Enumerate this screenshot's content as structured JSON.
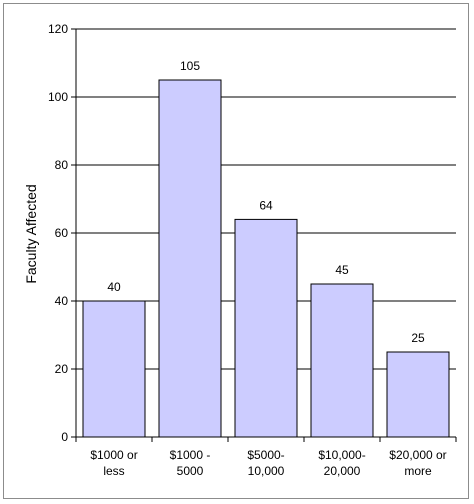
{
  "chart_data": {
    "type": "bar",
    "ylabel": "Faculty Affected",
    "xlabel": "",
    "ylim": [
      0,
      120
    ],
    "ytick_step": 20,
    "yticks": [
      "0",
      "20",
      "40",
      "60",
      "80",
      "100",
      "120"
    ],
    "grid": true,
    "categories": [
      [
        "$1000 or",
        "less"
      ],
      [
        "$1000 -",
        "5000"
      ],
      [
        "$5000-",
        "10,000"
      ],
      [
        "$10,000-",
        "20,000"
      ],
      [
        "$20,000 or",
        "more"
      ]
    ],
    "values": [
      40,
      105,
      64,
      45,
      25
    ],
    "data_labels": [
      "40",
      "105",
      "64",
      "45",
      "25"
    ],
    "colors": {
      "bar_fill": "#ccccff",
      "bar_stroke": "#000000",
      "grid": "#000000"
    }
  }
}
